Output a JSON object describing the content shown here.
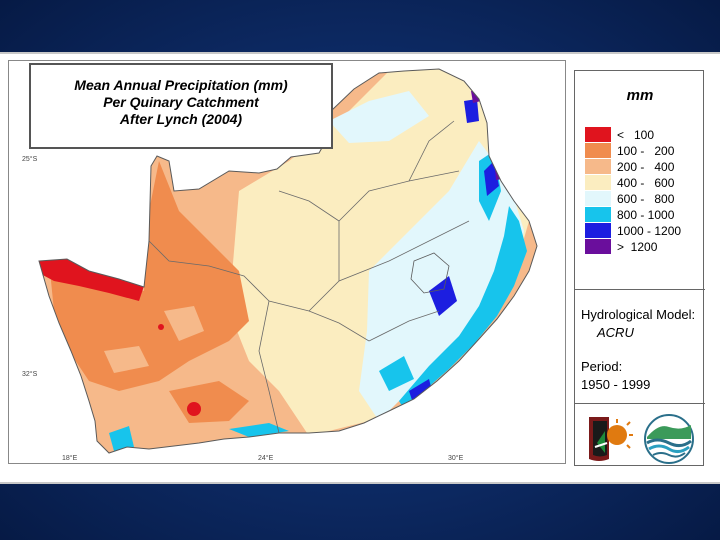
{
  "title": {
    "line1": "Mean Annual Precipitation (mm)",
    "line2": "Per Quinary Catchment",
    "line3": "After Lynch (2004)"
  },
  "coordinates": {
    "lat_top": "25°S",
    "lat_bottom": "32°S",
    "lon_left": "18°E",
    "lon_middle": "24°E",
    "lon_right": "30°E"
  },
  "legend": {
    "unit": "mm",
    "classes": [
      {
        "label": "<   100",
        "color": "#e0141e"
      },
      {
        "label": "100 -   200",
        "color": "#f08c4e"
      },
      {
        "label": "200 -   400",
        "color": "#f6b98a"
      },
      {
        "label": "400 -   600",
        "color": "#fbedc0"
      },
      {
        "label": "600 -   800",
        "color": "#e2f7fc"
      },
      {
        "label": "800 - 1000",
        "color": "#17c4ec"
      },
      {
        "label": "1000 - 1200",
        "color": "#1c1ee0"
      },
      {
        "label": ">  1200",
        "color": "#6a0e9c"
      }
    ],
    "model_label": "Hydrological Model:",
    "model_value": "ACRU",
    "period_label": "Period:",
    "period_value": "1950 - 1999"
  }
}
